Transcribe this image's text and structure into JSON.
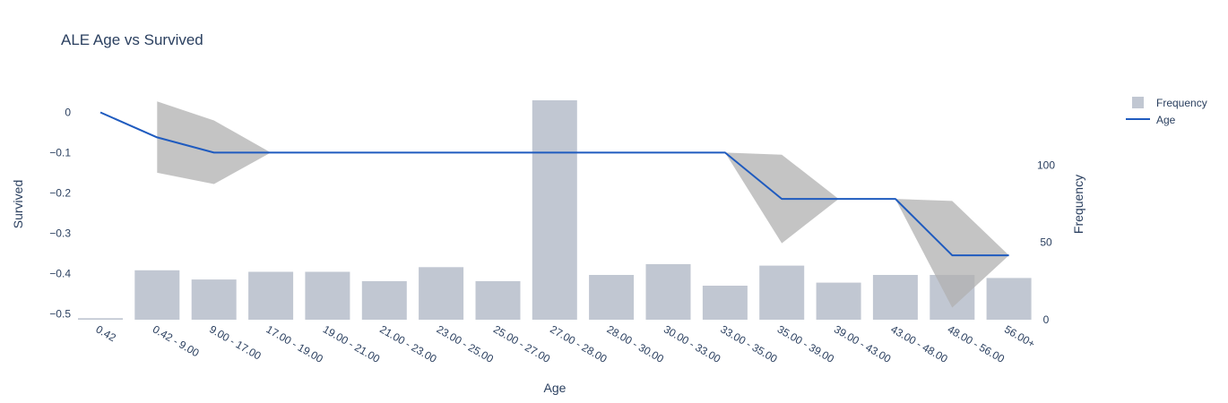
{
  "chart_data": {
    "type": "bar+line",
    "title": "ALE Age vs Survived",
    "xlabel": "Age",
    "ylabel": "Survived",
    "y2label": "Frequency",
    "categories": [
      "0.42",
      "0.42 - 9.00",
      "9.00 - 17.00",
      "17.00 - 19.00",
      "19.00 - 21.00",
      "21.00 - 23.00",
      "23.00 - 25.00",
      "25.00 - 27.00",
      "27.00 - 28.00",
      "28.00 - 30.00",
      "30.00 - 33.00",
      "33.00 - 35.00",
      "35.00 - 39.00",
      "39.00 - 43.00",
      "43.00 - 48.00",
      "48.00 - 56.00",
      "56.00+"
    ],
    "ylim": [
      -0.515,
      0.03
    ],
    "y_ticks": [
      "0",
      "−0.1",
      "−0.2",
      "−0.3",
      "−0.4",
      "−0.5"
    ],
    "y_tick_values": [
      0,
      -0.1,
      -0.2,
      -0.3,
      -0.4,
      -0.5
    ],
    "y2lim": [
      0,
      142
    ],
    "y2_ticks": [
      "0",
      "50",
      "100"
    ],
    "y2_tick_values": [
      0,
      50,
      100
    ],
    "series": [
      {
        "name": "Frequency",
        "type": "bar",
        "axis": "y2",
        "color": "#c1c7d2",
        "values": [
          1,
          32,
          26,
          31,
          31,
          25,
          34,
          25,
          142,
          29,
          36,
          22,
          35,
          24,
          29,
          29,
          27
        ]
      },
      {
        "name": "Age",
        "type": "line",
        "axis": "y",
        "color": "#1f5bbf",
        "values": [
          0,
          -0.062,
          -0.1,
          -0.1,
          -0.1,
          -0.1,
          -0.1,
          -0.1,
          -0.1,
          -0.1,
          -0.1,
          -0.1,
          -0.215,
          -0.215,
          -0.215,
          -0.355,
          -0.355
        ]
      }
    ],
    "confidence_band": {
      "color": "#b0b0b0",
      "segments": [
        {
          "x": [
            1,
            2,
            3
          ],
          "upper": [
            0.027,
            -0.02,
            -0.1
          ],
          "lower": [
            -0.15,
            -0.178,
            -0.1
          ]
        },
        {
          "x": [
            11,
            12,
            13
          ],
          "upper": [
            -0.1,
            -0.105,
            -0.215
          ],
          "lower": [
            -0.1,
            -0.325,
            -0.215
          ]
        },
        {
          "x": [
            14,
            15,
            16
          ],
          "upper": [
            -0.215,
            -0.22,
            -0.355
          ],
          "lower": [
            -0.215,
            -0.485,
            -0.355
          ]
        }
      ]
    },
    "legend": {
      "placement": "top-right",
      "entries": [
        "Frequency",
        "Age"
      ]
    },
    "grid": false
  }
}
